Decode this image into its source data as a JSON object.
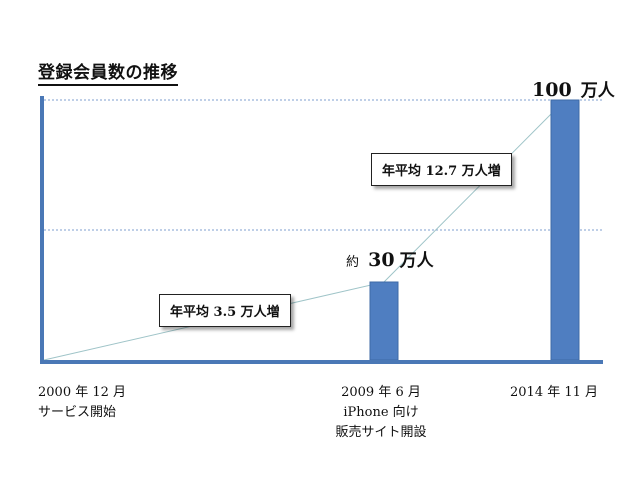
{
  "title": "登録会員数の推移",
  "chart_data": {
    "type": "bar",
    "unit": "万人",
    "categories": [
      "2000 年 12 月",
      "2009 年 6 月",
      "2014 年 11 月"
    ],
    "values": [
      0,
      30,
      100
    ],
    "bar_color": "#4f7ec1",
    "axis_color": "#4a78b6",
    "ylim": [
      0,
      100
    ],
    "value_labels": [
      {
        "prefix": "",
        "number": "",
        "suffix": ""
      },
      {
        "prefix": "約",
        "number": "30",
        "suffix": "万人"
      },
      {
        "prefix": "",
        "number": "100",
        "suffix": "万人"
      }
    ],
    "category_notes": [
      [
        "サービス開始"
      ],
      [
        "iPhone 向け",
        "販売サイト開設"
      ],
      []
    ],
    "annotations": [
      {
        "text": "年平均 3.5 万人増"
      },
      {
        "text": "年平均 12.7 万人増"
      }
    ]
  }
}
